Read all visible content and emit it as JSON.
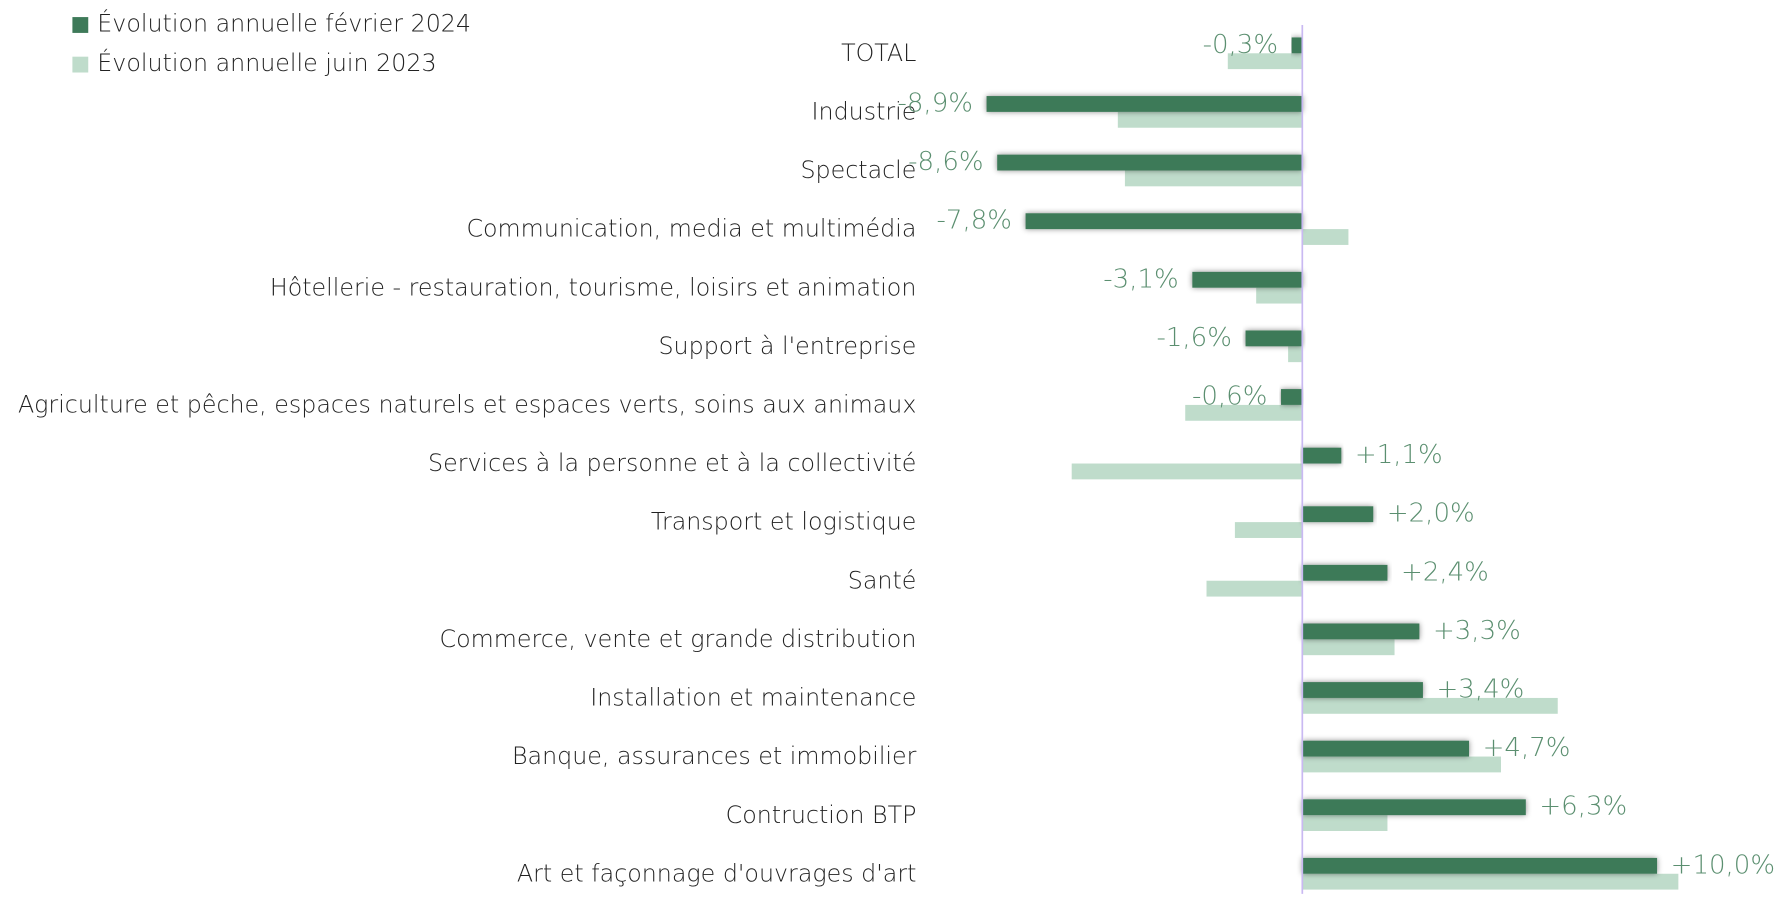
{
  "chart_data": {
    "type": "hbar",
    "categories": [
      "TOTAL",
      "Industrie",
      "Spectacle",
      "Communication, media et multimédia",
      "Hôtellerie - restauration, tourisme, loisirs et animation",
      "Support à l'entreprise",
      "Agriculture et pêche, espaces naturels et espaces verts, soins aux animaux",
      "Services à la personne et à la collectivité",
      "Transport et logistique",
      "Santé",
      "Commerce, vente et grande distribution",
      "Installation et maintenance",
      "Banque, assurances et immobilier",
      "Contruction BTP",
      "Art  et façonnage d'ouvrages d'art"
    ],
    "series": [
      {
        "name": "Évolution annuelle février 2024",
        "color": "#3e7a59",
        "values": [
          -0.3,
          -8.9,
          -8.6,
          -7.8,
          -3.1,
          -1.6,
          -0.6,
          1.1,
          2.0,
          2.4,
          3.3,
          3.4,
          4.7,
          6.3,
          10.0
        ],
        "value_labels": [
          "-0,3%",
          "-8,9%",
          "-8,6%",
          "-7,8%",
          "-3,1%",
          "-1,6%",
          "-0,6%",
          "+1,1%",
          "+2,0%",
          "+2,4%",
          "+3,3%",
          "+3,4%",
          "+4,7%",
          "+6,3%",
          "+10,0%"
        ]
      },
      {
        "name": "Évolution annuelle juin 2023",
        "color": "#bfdccb",
        "values": [
          -2.1,
          -5.2,
          -5.0,
          1.3,
          -1.3,
          -0.4,
          -3.3,
          -6.5,
          -1.9,
          -2.7,
          2.6,
          7.2,
          5.6,
          2.4,
          10.6
        ]
      }
    ],
    "xlim": [
      -10,
      13.2
    ],
    "legend": "top-left"
  }
}
